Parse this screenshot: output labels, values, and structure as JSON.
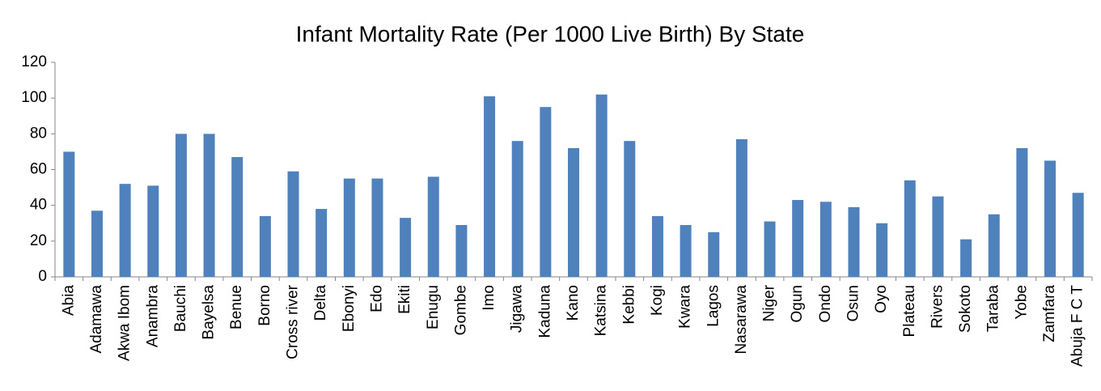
{
  "chart_data": {
    "type": "bar",
    "title": "Infant Mortality Rate (Per 1000 Live Birth) By State",
    "categories": [
      "Abia",
      "Adamawa",
      "Akwa Ibom",
      "Anambra",
      "Bauchi",
      "Bayelsa",
      "Benue",
      "Borno",
      "Cross river",
      "Delta",
      "Ebonyi",
      "Edo",
      "Ekiti",
      "Enugu",
      "Gombe",
      "Imo",
      "Jigawa",
      "Kaduna",
      "Kano",
      "Katsina",
      "Kebbi",
      "Kogi",
      "Kwara",
      "Lagos",
      "Nasarawa",
      "Niger",
      "Ogun",
      "Ondo",
      "Osun",
      "Oyo",
      "Plateau",
      "Rivers",
      "Sokoto",
      "Taraba",
      "Yobe",
      "Zamfara",
      "Abuja F C T"
    ],
    "values": [
      70,
      37,
      52,
      51,
      80,
      80,
      67,
      34,
      59,
      38,
      55,
      55,
      33,
      56,
      29,
      101,
      76,
      95,
      72,
      102,
      76,
      34,
      29,
      25,
      77,
      31,
      43,
      42,
      39,
      30,
      54,
      45,
      21,
      35,
      72,
      65,
      47
    ],
    "color": "#4f81bd",
    "ylim": [
      0,
      120
    ],
    "yticks": [
      0,
      20,
      40,
      60,
      80,
      100,
      120
    ],
    "grid": false
  }
}
